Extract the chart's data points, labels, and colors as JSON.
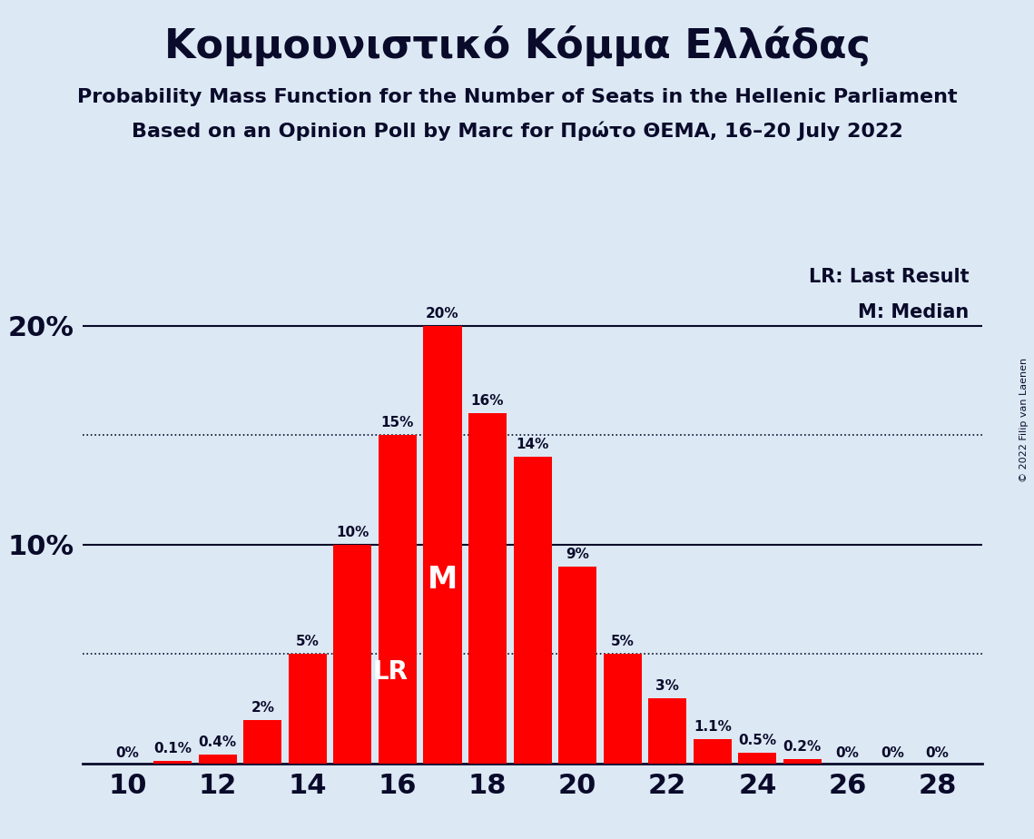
{
  "title": "Κομμουνιστικό Κόμμα Ελλάδας",
  "subtitle1": "Probability Mass Function for the Number of Seats in the Hellenic Parliament",
  "subtitle2": "Based on an Opinion Poll by Marc for Πρώτο ΘΕΜΑ, 16–20 July 2022",
  "copyright": "© 2022 Filip van Laenen",
  "seats": [
    10,
    11,
    12,
    13,
    14,
    15,
    16,
    17,
    18,
    19,
    20,
    21,
    22,
    23,
    24,
    25,
    26,
    27,
    28
  ],
  "probabilities": [
    0.0,
    0.1,
    0.4,
    2.0,
    5.0,
    10.0,
    15.0,
    20.0,
    16.0,
    14.0,
    9.0,
    5.0,
    3.0,
    1.1,
    0.5,
    0.2,
    0.0,
    0.0,
    0.0
  ],
  "labels": [
    "0%",
    "0.1%",
    "0.4%",
    "2%",
    "5%",
    "10%",
    "15%",
    "20%",
    "16%",
    "14%",
    "9%",
    "5%",
    "3%",
    "1.1%",
    "0.5%",
    "0.2%",
    "0%",
    "0%",
    "0%"
  ],
  "bar_color": "#FF0000",
  "background_color": "#dce9f5",
  "text_color": "#0a0a2a",
  "lr_seat": 15,
  "median_seat": 17,
  "dotted_lines": [
    5.0,
    15.0
  ],
  "solid_lines": [
    10.0,
    20.0
  ],
  "legend_lr": "LR: Last Result",
  "legend_m": "M: Median",
  "xlabel_seats": [
    10,
    12,
    14,
    16,
    18,
    20,
    22,
    24,
    26,
    28
  ],
  "ylim": [
    0,
    23
  ],
  "xlim": [
    9,
    29
  ]
}
